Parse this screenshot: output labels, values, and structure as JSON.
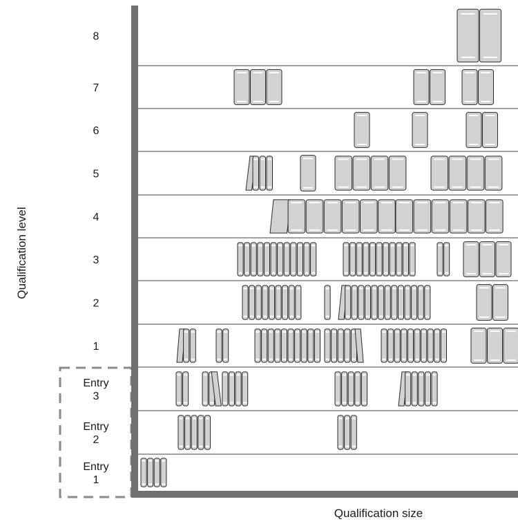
{
  "title": "",
  "axes": {
    "y_title": "Qualification level",
    "x_title": "Qualification size"
  },
  "colors": {
    "axis": "#707070",
    "book_fill": "#d2d2d2",
    "book_stroke": "#2a2a2a",
    "row_line": "#444444",
    "highlight": "#ffffff",
    "entry_box": "#8a8a8a"
  },
  "levels": [
    {
      "label": "8",
      "group": [
        {
          "count": 2,
          "size": "xl"
        }
      ]
    },
    {
      "label": "7",
      "group": [
        {
          "count": 3,
          "size": "m"
        },
        {
          "count": 2,
          "size": "m"
        },
        {
          "count": 2,
          "size": "m"
        }
      ]
    },
    {
      "label": "6",
      "group": [
        {
          "count": 1,
          "size": "m"
        },
        {
          "count": 1,
          "size": "m"
        },
        {
          "count": 2,
          "size": "m"
        }
      ]
    },
    {
      "label": "5",
      "group": [
        {
          "count": 4,
          "size": "s"
        },
        {
          "count": 1,
          "size": "m"
        },
        {
          "count": 4,
          "size": "l"
        },
        {
          "count": 4,
          "size": "l"
        }
      ]
    },
    {
      "label": "4",
      "group": [
        {
          "count": 7,
          "size": "l"
        },
        {
          "count": 6,
          "size": "l"
        }
      ]
    },
    {
      "label": "3",
      "group": [
        {
          "count": 12,
          "size": "xs"
        },
        {
          "count": 11,
          "size": "xs"
        },
        {
          "count": 2,
          "size": "xs"
        },
        {
          "count": 3,
          "size": "m"
        }
      ]
    },
    {
      "label": "2",
      "group": [
        {
          "count": 9,
          "size": "xs"
        },
        {
          "count": 1,
          "size": "xs"
        },
        {
          "count": 14,
          "size": "xs"
        },
        {
          "count": 2,
          "size": "m"
        }
      ]
    },
    {
      "label": "1",
      "group": [
        {
          "count": 3,
          "size": "xs"
        },
        {
          "count": 2,
          "size": "xs"
        },
        {
          "count": 10,
          "size": "xs"
        },
        {
          "count": 6,
          "size": "xs"
        },
        {
          "count": 10,
          "size": "xs"
        },
        {
          "count": 3,
          "size": "m"
        }
      ]
    },
    {
      "label": "Entry\n3",
      "group": [
        {
          "count": 2,
          "size": "xs"
        },
        {
          "count": 7,
          "size": "xs"
        },
        {
          "count": 5,
          "size": "xs"
        },
        {
          "count": 6,
          "size": "xs"
        }
      ]
    },
    {
      "label": "Entry\n2",
      "group": [
        {
          "count": 5,
          "size": "xs"
        },
        {
          "count": 3,
          "size": "xs"
        }
      ]
    },
    {
      "label": "Entry\n1",
      "group": [
        {
          "count": 4,
          "size": "xs"
        }
      ]
    }
  ]
}
